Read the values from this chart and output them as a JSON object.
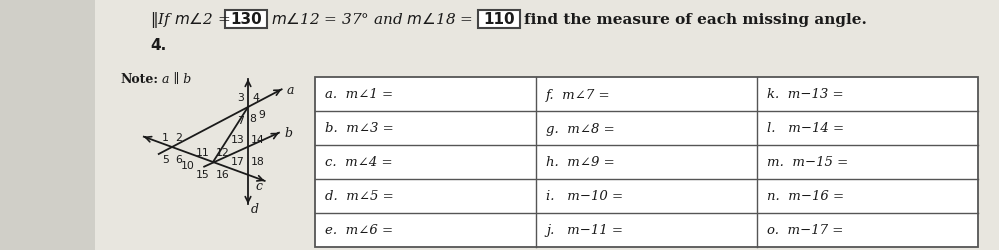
{
  "val1": "130",
  "val2": "110",
  "bg_color": "#d0cfc8",
  "paper_color": "#e8e6df",
  "table_rows": [
    [
      "a.  m∠1 =",
      "f.  m∠7 =",
      "k.  m−13 ="
    ],
    [
      "b.  m∠3 =",
      "g.  m∠8 =",
      "l.   m−14 ="
    ],
    [
      "c.  m∠4 =",
      "h.  m∠9 =",
      "m.  m−15 ="
    ],
    [
      "d.  m∠5 =",
      "i.   m−10 =",
      "n.  m−16 ="
    ],
    [
      "e.  m∠6 =",
      "j.   m−11 =",
      "o.  m−17 ="
    ]
  ],
  "line_color": "#1a1a1a",
  "text_color": "#1a1a1a",
  "label_a": "a",
  "label_b": "b",
  "label_c": "c",
  "label_d": "d",
  "header_prefix": "If  m∠2 =",
  "header_mid": "m∂12 = 37° and m∂18 =",
  "header_end": "find the measure of each missing angle.",
  "item4": "4.",
  "note_bold": "Note:",
  "note_italic": " a ∥ b"
}
